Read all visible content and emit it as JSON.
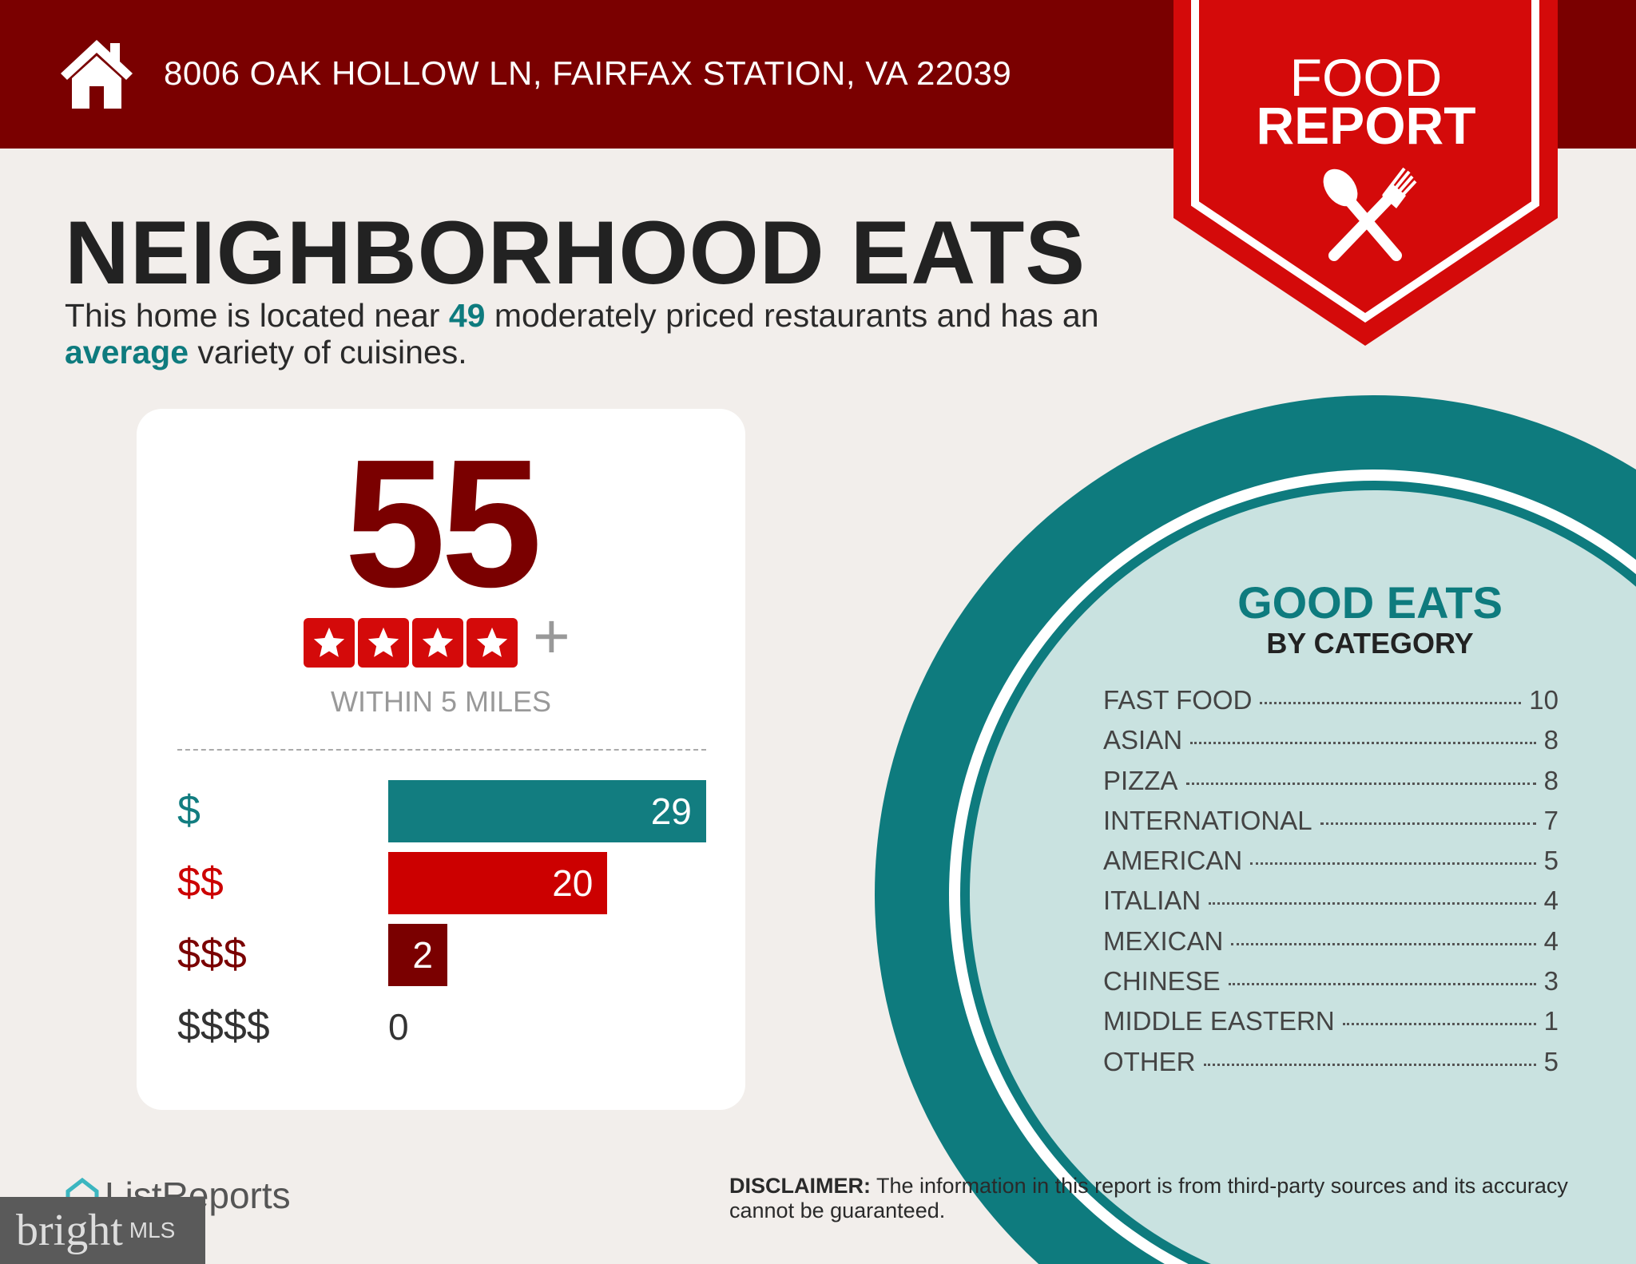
{
  "header": {
    "address": "8006 OAK HOLLOW LN, FAIRFAX STATION, VA 22039",
    "icon": "house-icon"
  },
  "badge": {
    "line1": "FOOD",
    "line2": "REPORT",
    "icon": "spoon-fork-icon"
  },
  "title": "NEIGHBORHOOD EATS",
  "subtitle": {
    "p1": "This home is located near ",
    "count": "49",
    "p2": " moderately priced restaurants and has an ",
    "variety": "average",
    "p3": " variety of cuisines."
  },
  "summary": {
    "count": "55",
    "stars": 4,
    "plus": "+",
    "within": "WITHIN 5 MILES"
  },
  "price_tiers": [
    {
      "label": "$",
      "value": 29,
      "color": "#127d80"
    },
    {
      "label": "$$",
      "value": 20,
      "color": "#cc0000"
    },
    {
      "label": "$$$",
      "value": 2,
      "color": "#7a0000"
    },
    {
      "label": "$$$$",
      "value": 0,
      "color": "#333333"
    }
  ],
  "good_eats": {
    "title": "GOOD EATS",
    "subtitle": "BY CATEGORY",
    "categories": [
      {
        "name": "FAST FOOD",
        "count": "10"
      },
      {
        "name": "ASIAN",
        "count": "8"
      },
      {
        "name": "PIZZA",
        "count": "8"
      },
      {
        "name": "INTERNATIONAL",
        "count": "7"
      },
      {
        "name": "AMERICAN",
        "count": "5"
      },
      {
        "name": "ITALIAN",
        "count": "4"
      },
      {
        "name": "MEXICAN",
        "count": "4"
      },
      {
        "name": "CHINESE",
        "count": "3"
      },
      {
        "name": "MIDDLE EASTERN",
        "count": "1"
      },
      {
        "name": "OTHER",
        "count": "5"
      }
    ]
  },
  "disclaimer": {
    "label": "DISCLAIMER:",
    "text": " The information in this report is from third-party sources and its accuracy cannot be guaranteed."
  },
  "footer": {
    "listreports": "ListReports",
    "bright": "bright",
    "mls": "MLS"
  },
  "colors": {
    "header": "#7a0000",
    "badge": "#d40a0a",
    "teal": "#0e7b7e",
    "light_teal": "#c9e2e0",
    "background": "#f2eeeb"
  }
}
